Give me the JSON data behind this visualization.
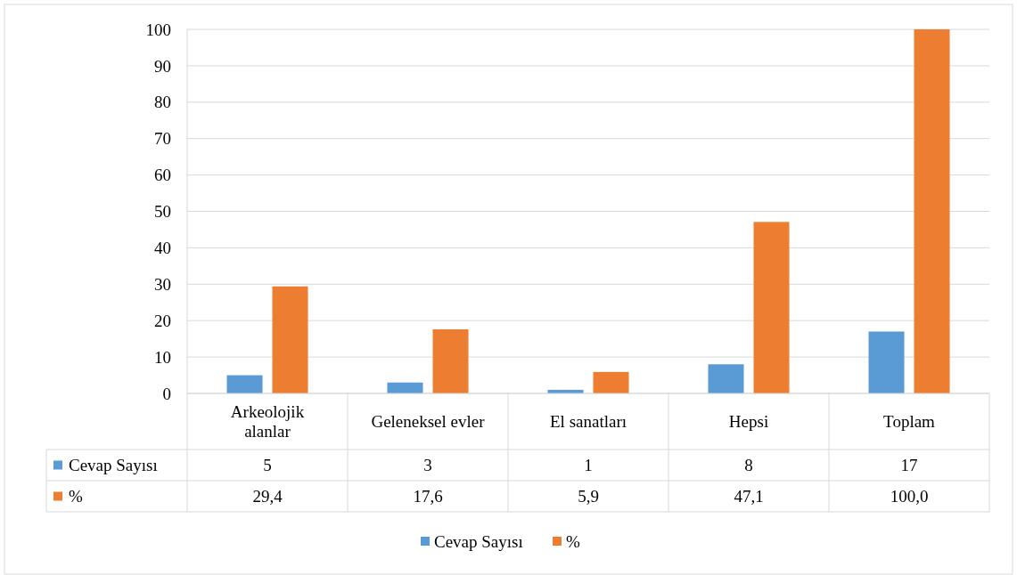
{
  "chart_data": {
    "type": "bar",
    "categories": [
      "Arkeolojik alanlar",
      "Geleneksel evler",
      "El sanatları",
      "Hepsi",
      "Toplam"
    ],
    "series": [
      {
        "name": "Cevap Sayısı",
        "color": "#5b9bd5",
        "values": [
          5,
          3,
          1,
          8,
          17
        ],
        "value_labels": [
          "5",
          "3",
          "1",
          "8",
          "17"
        ]
      },
      {
        "name": "%",
        "color": "#ed7d31",
        "values": [
          29.4,
          17.6,
          5.9,
          47.1,
          100.0
        ],
        "value_labels": [
          "29,4",
          "17,6",
          "5,9",
          "47,1",
          "100,0"
        ]
      }
    ],
    "ylim": [
      0,
      100
    ],
    "yticks": [
      0,
      10,
      20,
      30,
      40,
      50,
      60,
      70,
      80,
      90,
      100
    ],
    "grid": "y",
    "legend": "bottom"
  }
}
